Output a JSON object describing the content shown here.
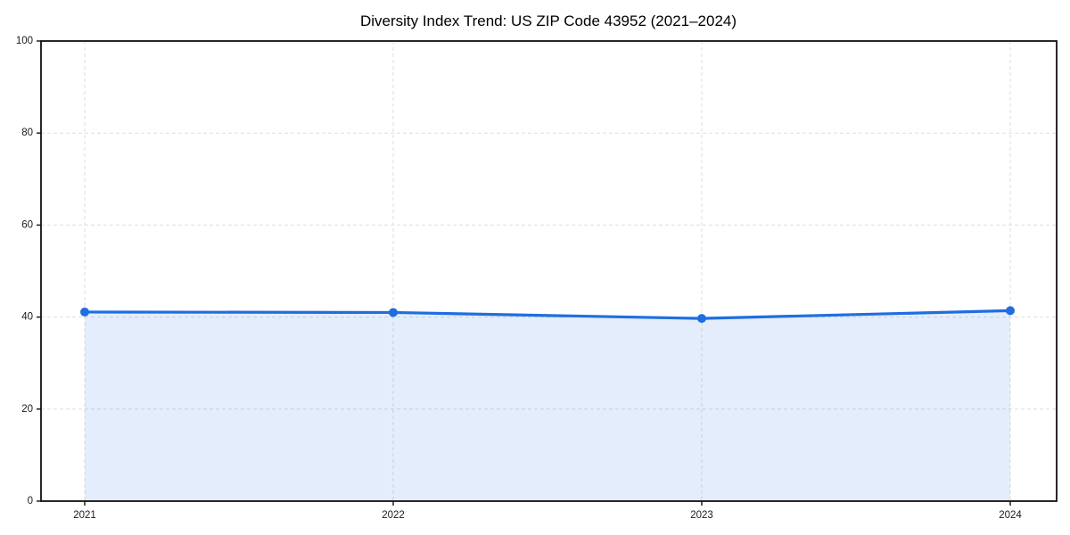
{
  "chart_data": {
    "type": "area",
    "title": "Diversity Index Trend: US ZIP Code 43952 (2021–2024)",
    "x": [
      2021,
      2022,
      2023,
      2024
    ],
    "x_tick_labels": [
      "2021",
      "2022",
      "2023",
      "2024"
    ],
    "series": [
      {
        "name": "Diversity Index",
        "values": [
          41.1,
          41.0,
          39.7,
          41.4
        ]
      }
    ],
    "xlabel": "",
    "ylabel": "",
    "xlim": [
      2020.85,
      2024.15
    ],
    "ylim": [
      0,
      100
    ],
    "yticks": [
      0,
      20,
      40,
      60,
      80,
      100
    ],
    "grid": true,
    "grid_style": "dashed",
    "legend_position": "none",
    "colors": {
      "line": "#1f6ee0",
      "marker": "#1f6ee0",
      "fill": "#1f6ee0",
      "fill_opacity": 0.12,
      "grid": "#dedede",
      "spine": "#111111",
      "text": "#1a1a1a",
      "background": "#ffffff"
    }
  }
}
